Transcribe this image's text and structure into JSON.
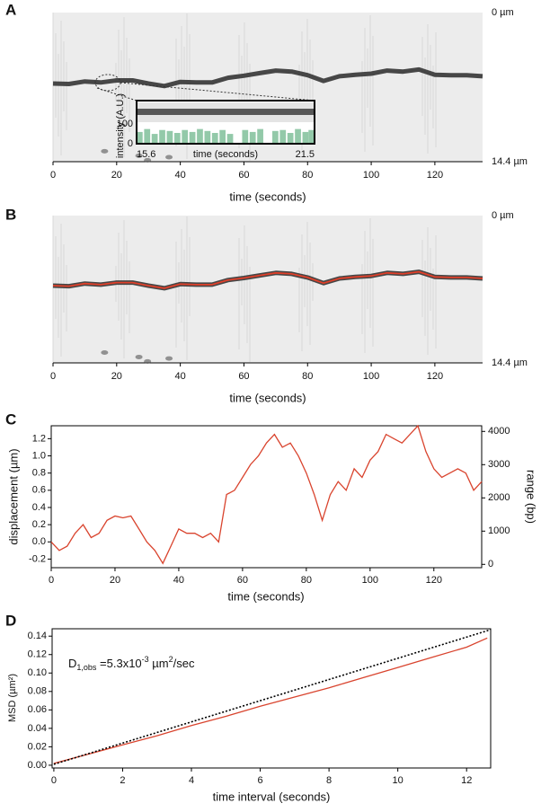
{
  "chart_data": [
    {
      "type": "kymograph",
      "panel_label": "A",
      "xlabel": "time (seconds)",
      "color": "#2a2a2a",
      "xlim": [
        0,
        135
      ],
      "xticks": [
        0,
        20,
        40,
        60,
        80,
        100,
        120
      ],
      "ylim": [
        0,
        14.4
      ],
      "y_inverted": true,
      "yticks": [
        {
          "value": 0,
          "label": "0 µm"
        },
        {
          "value": 14.4,
          "label": "14.4 µm"
        }
      ],
      "x": [
        0,
        5,
        10,
        15,
        20,
        25,
        30,
        35,
        40,
        45,
        50,
        55,
        60,
        65,
        70,
        75,
        80,
        85,
        90,
        95,
        100,
        105,
        110,
        115,
        120,
        125,
        130,
        135
      ],
      "values": [
        6.85,
        6.9,
        6.65,
        6.75,
        6.55,
        6.55,
        6.85,
        7.1,
        6.7,
        6.75,
        6.75,
        6.3,
        6.1,
        5.85,
        5.6,
        5.7,
        6.05,
        6.6,
        6.15,
        6.0,
        5.9,
        5.6,
        5.7,
        5.5,
        6.0,
        6.05,
        6.05,
        6.15
      ]
    },
    {
      "type": "bar",
      "ylabel": "intensity (A.U.)",
      "xlabel": "time (seconds)",
      "color": "#93c9a9",
      "xlim": [
        15.6,
        21.5
      ],
      "xticks": [
        15.6,
        21.5
      ],
      "ylim": [
        0,
        220
      ],
      "yticks": [
        0,
        100
      ],
      "x": [
        15.7,
        15.95,
        16.2,
        16.45,
        16.7,
        16.95,
        17.2,
        17.45,
        17.7,
        17.95,
        18.2,
        18.45,
        18.7,
        18.95,
        19.2,
        19.45,
        19.7,
        19.95,
        20.2,
        20.45,
        20.7,
        20.95,
        21.2,
        21.4
      ],
      "values": [
        60,
        75,
        50,
        70,
        65,
        55,
        70,
        60,
        75,
        65,
        55,
        70,
        50,
        0,
        70,
        60,
        75,
        0,
        65,
        70,
        55,
        75,
        60,
        70
      ]
    },
    {
      "type": "kymograph",
      "panel_label": "B",
      "xlabel": "time (seconds)",
      "band_color": "#2a2a2a",
      "color": "#e0402a",
      "xlim": [
        0,
        135
      ],
      "xticks": [
        0,
        20,
        40,
        60,
        80,
        100,
        120
      ],
      "ylim": [
        0,
        14.4
      ],
      "y_inverted": true,
      "yticks": [
        {
          "value": 0,
          "label": "0 µm"
        },
        {
          "value": 14.4,
          "label": "14.4 µm"
        }
      ],
      "x": [
        0,
        5,
        10,
        15,
        20,
        25,
        30,
        35,
        40,
        45,
        50,
        55,
        60,
        65,
        70,
        75,
        80,
        85,
        90,
        95,
        100,
        105,
        110,
        115,
        120,
        125,
        130,
        135
      ],
      "values": [
        6.85,
        6.9,
        6.65,
        6.75,
        6.55,
        6.55,
        6.85,
        7.1,
        6.7,
        6.75,
        6.75,
        6.3,
        6.1,
        5.85,
        5.6,
        5.7,
        6.05,
        6.6,
        6.15,
        6.0,
        5.9,
        5.6,
        5.7,
        5.5,
        6.0,
        6.05,
        6.05,
        6.15
      ]
    },
    {
      "type": "line",
      "panel_label": "C",
      "xlabel": "time (seconds)",
      "ylabel": "displacement (µm)",
      "y2label": "range (bp)",
      "xlim": [
        0,
        135
      ],
      "xticks": [
        0,
        20,
        40,
        60,
        80,
        100,
        120
      ],
      "ylim": [
        -0.3,
        1.35
      ],
      "yticks": [
        -0.2,
        {
          "value": 0,
          "label": "0.0"
        },
        0.2,
        0.4,
        0.6,
        0.8,
        {
          "value": 1,
          "label": "1.0"
        },
        1.2
      ],
      "y2lim": [
        -100,
        4170
      ],
      "y2ticks": [
        0,
        1000,
        2000,
        3000,
        4000
      ],
      "series": [
        {
          "color": "#d9442e",
          "x": [
            0,
            2.5,
            5,
            7.5,
            10,
            12.5,
            15,
            17.5,
            20,
            22.5,
            25,
            27.5,
            30,
            32.5,
            35,
            37.5,
            40,
            42.5,
            45,
            47.5,
            50,
            52.5,
            55,
            57.5,
            60,
            62.5,
            65,
            67.5,
            70,
            72.5,
            75,
            77.5,
            80,
            82.5,
            85,
            87.5,
            90,
            92.5,
            95,
            97.5,
            100,
            102.5,
            105,
            107.5,
            110,
            112.5,
            115,
            117.5,
            120,
            122.5,
            125,
            127.5,
            130,
            132.5,
            135
          ],
          "values": [
            0.0,
            -0.1,
            -0.05,
            0.1,
            0.2,
            0.05,
            0.1,
            0.25,
            0.3,
            0.28,
            0.3,
            0.15,
            0.0,
            -0.1,
            -0.25,
            -0.05,
            0.15,
            0.1,
            0.1,
            0.05,
            0.1,
            0.0,
            0.55,
            0.6,
            0.75,
            0.9,
            1.0,
            1.15,
            1.25,
            1.1,
            1.15,
            1.0,
            0.8,
            0.55,
            0.25,
            0.55,
            0.7,
            0.6,
            0.85,
            0.75,
            0.95,
            1.05,
            1.25,
            1.2,
            1.15,
            1.25,
            1.35,
            1.05,
            0.85,
            0.75,
            0.8,
            0.85,
            0.8,
            0.6,
            0.7
          ]
        }
      ]
    },
    {
      "type": "line",
      "panel_label": "D",
      "xlabel": "time interval (seconds)",
      "ylabel": "MSD (µm²)",
      "annotation": {
        "symbol": "D",
        "subscript": "1,obs",
        "text": " =5.3x10",
        "exponent": "-3",
        "unit": " µm",
        "unit_exponent": "2",
        "tail": "/sec"
      },
      "xlim": [
        -0.05,
        12.7
      ],
      "xticks": [
        0,
        2,
        4,
        6,
        8,
        10,
        12
      ],
      "ylim": [
        -0.003,
        0.148
      ],
      "yticks": [
        {
          "value": 0,
          "label": "0.00"
        },
        0.02,
        0.04,
        0.06,
        0.08,
        {
          "value": 0.1,
          "label": "0.10"
        },
        0.12,
        0.14
      ],
      "series": [
        {
          "color": "#d9442e",
          "x": [
            0,
            1,
            2,
            3,
            4,
            5,
            6,
            7,
            8,
            9,
            10,
            11,
            12,
            12.6
          ],
          "values": [
            0.002,
            0.012,
            0.022,
            0.032,
            0.043,
            0.053,
            0.064,
            0.074,
            0.084,
            0.095,
            0.106,
            0.117,
            0.128,
            0.138
          ]
        },
        {
          "color": "#000000",
          "dashed": true,
          "x": [
            0,
            12.7
          ],
          "values": [
            0.001,
            0.147
          ]
        }
      ]
    }
  ]
}
